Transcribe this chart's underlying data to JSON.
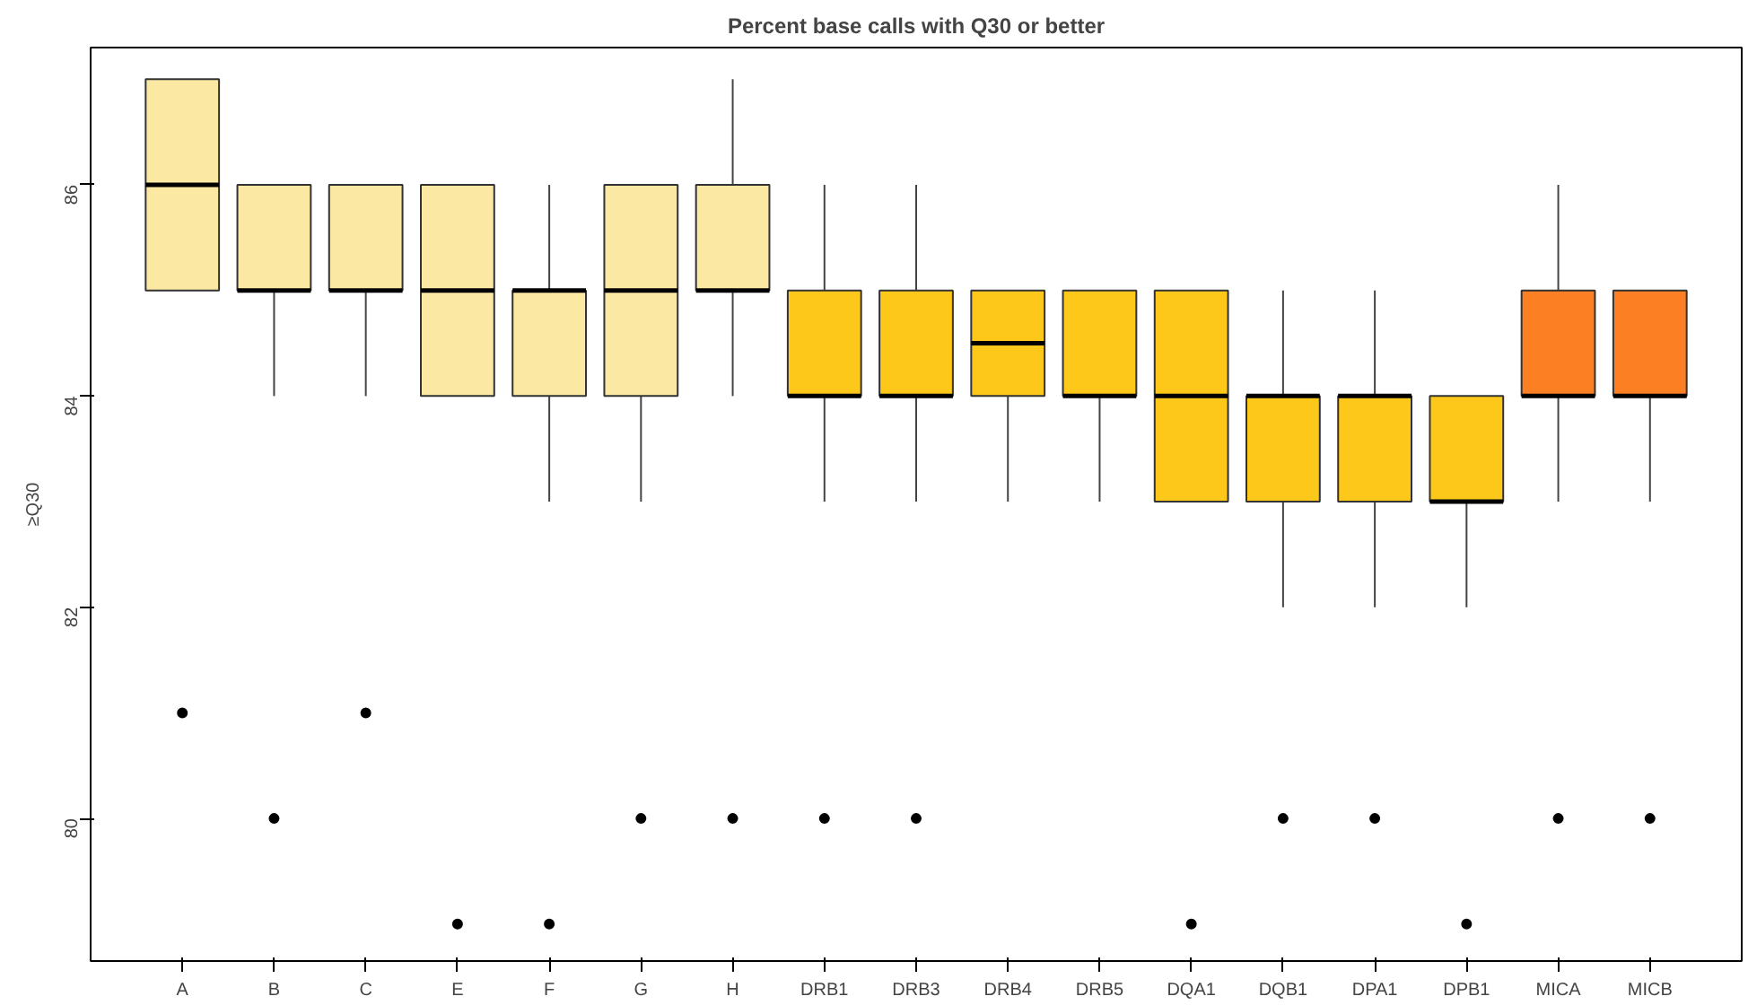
{
  "chart_data": {
    "type": "box",
    "title": "Percent base calls with Q30 or better",
    "ylabel": "≥Q30",
    "categories": [
      "A",
      "B",
      "C",
      "E",
      "F",
      "G",
      "H",
      "DRB1",
      "DRB3",
      "DRB4",
      "DRB5",
      "DQA1",
      "DQB1",
      "DPA1",
      "DPB1",
      "MICA",
      "MICB"
    ],
    "colors": [
      "#fbe9a3",
      "#fbe9a3",
      "#fbe9a3",
      "#fbe9a3",
      "#fbe9a3",
      "#fbe9a3",
      "#fbe9a3",
      "#fdc81a",
      "#fdc81a",
      "#fdc81a",
      "#fdc81a",
      "#fdc81a",
      "#fdc81a",
      "#fdc81a",
      "#fdc81a",
      "#fd7f23",
      "#fd7f23"
    ],
    "ylim": [
      78.65,
      87.3
    ],
    "yticks": [
      80,
      82,
      84,
      86
    ],
    "boxes": [
      {
        "low": 85,
        "q1": 85,
        "median": 86,
        "q3": 87,
        "high": 87,
        "outliers": [
          81
        ]
      },
      {
        "low": 84,
        "q1": 85,
        "median": 85,
        "q3": 86,
        "high": 86,
        "outliers": [
          80
        ]
      },
      {
        "low": 84,
        "q1": 85,
        "median": 85,
        "q3": 86,
        "high": 86,
        "outliers": [
          81
        ]
      },
      {
        "low": 84,
        "q1": 84,
        "median": 85,
        "q3": 86,
        "high": 86,
        "outliers": [
          79
        ]
      },
      {
        "low": 83,
        "q1": 84,
        "median": 85,
        "q3": 85,
        "high": 86,
        "outliers": [
          79
        ]
      },
      {
        "low": 83,
        "q1": 84,
        "median": 85,
        "q3": 86,
        "high": 86,
        "outliers": [
          80
        ]
      },
      {
        "low": 84,
        "q1": 85,
        "median": 85,
        "q3": 86,
        "high": 87,
        "outliers": [
          80
        ]
      },
      {
        "low": 83,
        "q1": 84,
        "median": 84,
        "q3": 85,
        "high": 86,
        "outliers": [
          80
        ]
      },
      {
        "low": 83,
        "q1": 84,
        "median": 84,
        "q3": 85,
        "high": 86,
        "outliers": [
          80
        ]
      },
      {
        "low": 83,
        "q1": 84,
        "median": 84.5,
        "q3": 85,
        "high": 85
      },
      {
        "low": 83,
        "q1": 84,
        "median": 84,
        "q3": 85,
        "high": 85
      },
      {
        "low": 83,
        "q1": 83,
        "median": 84,
        "q3": 85,
        "high": 85,
        "outliers": [
          79
        ]
      },
      {
        "low": 82,
        "q1": 83,
        "median": 84,
        "q3": 84,
        "high": 85,
        "outliers": [
          80
        ]
      },
      {
        "low": 82,
        "q1": 83,
        "median": 84,
        "q3": 84,
        "high": 85,
        "outliers": [
          80
        ]
      },
      {
        "low": 82,
        "q1": 83,
        "median": 83,
        "q3": 84,
        "high": 84,
        "outliers": [
          79
        ]
      },
      {
        "low": 83,
        "q1": 84,
        "median": 84,
        "q3": 85,
        "high": 86,
        "outliers": [
          80
        ]
      },
      {
        "low": 83,
        "q1": 84,
        "median": 84,
        "q3": 85,
        "high": 85,
        "outliers": [
          80
        ]
      }
    ]
  }
}
